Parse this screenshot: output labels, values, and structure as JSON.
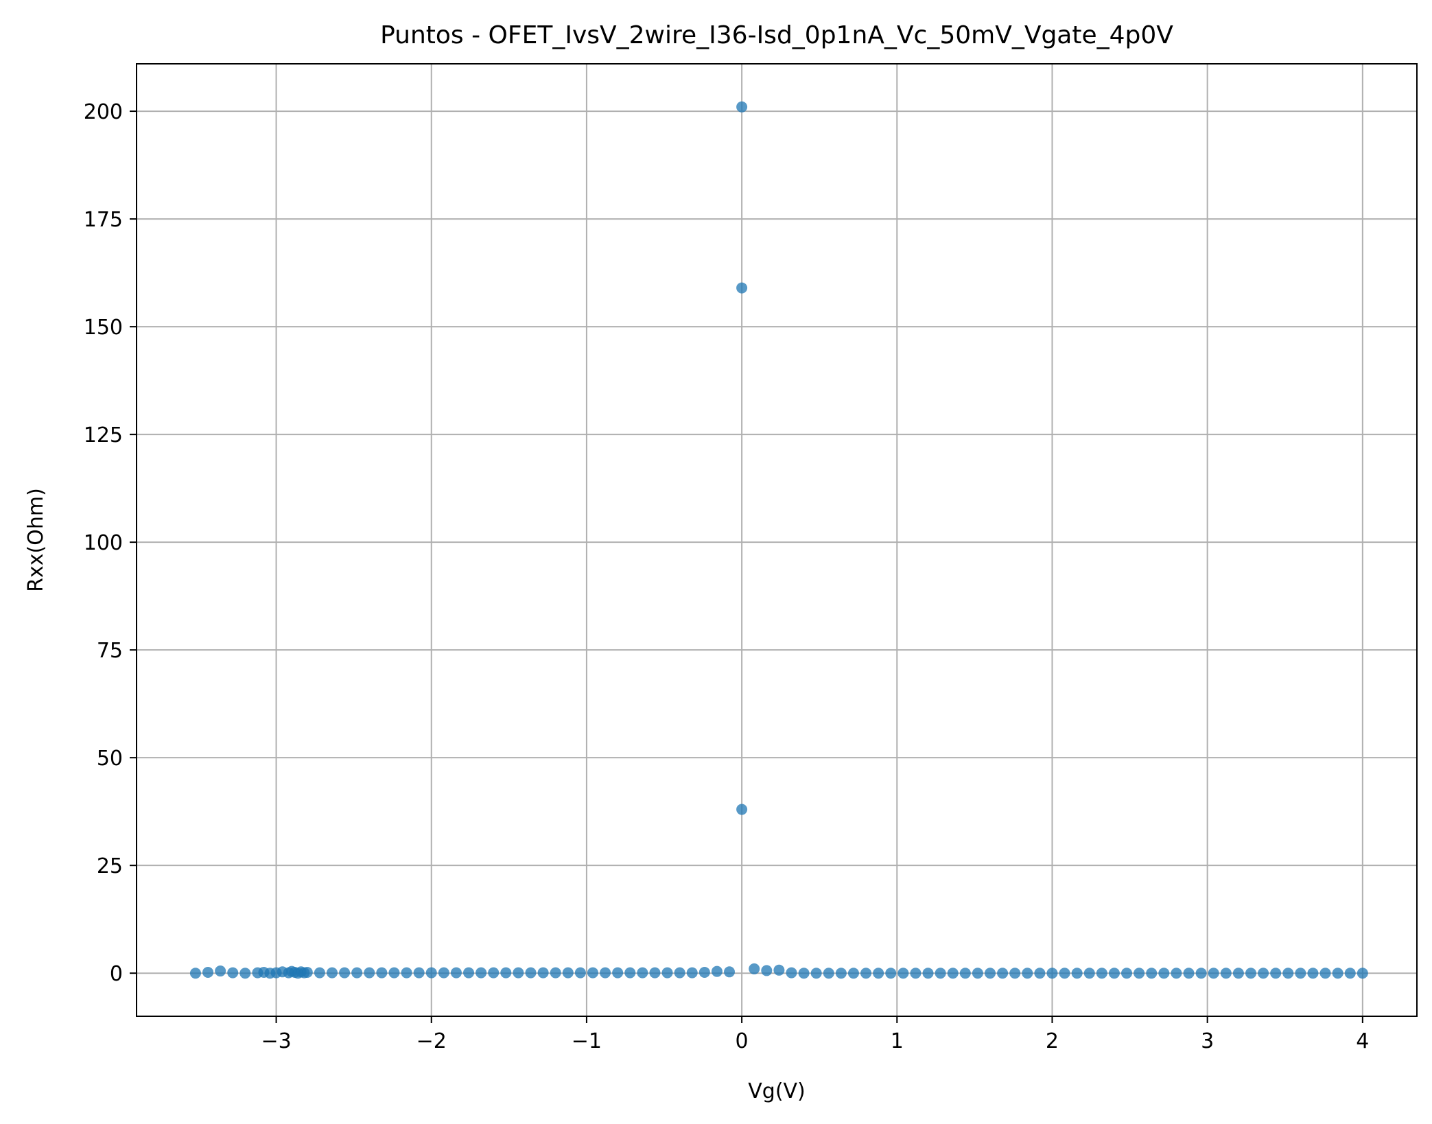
{
  "chart_data": {
    "type": "scatter",
    "title": "Puntos - OFET_IvsV_2wire_I36-Isd_0p1nA_Vc_50mV_Vgate_4p0V",
    "xlabel": "Vg(V)",
    "ylabel": "Rxx(Ohm)",
    "xlim": [
      -3.9,
      4.35
    ],
    "ylim": [
      -10,
      211
    ],
    "xticks": [
      -3,
      -2,
      -1,
      0,
      1,
      2,
      3,
      4
    ],
    "xtick_labels": [
      "−3",
      "−2",
      "−1",
      "0",
      "1",
      "2",
      "3",
      "4"
    ],
    "yticks": [
      0,
      25,
      50,
      75,
      100,
      125,
      150,
      175,
      200
    ],
    "ytick_labels": [
      "0",
      "25",
      "50",
      "75",
      "100",
      "125",
      "150",
      "175",
      "200"
    ],
    "grid": true,
    "point_color": "#1f77b4",
    "series": [
      {
        "x": [
          -3.52,
          -3.44,
          -3.36,
          -3.28,
          -3.2,
          -3.12,
          -3.08,
          -3.04,
          -3.0,
          -2.96,
          -2.92,
          -2.9,
          -2.88,
          -2.86,
          -2.84,
          -2.82,
          -2.8,
          -2.72,
          -2.64,
          -2.56,
          -2.48,
          -2.4,
          -2.32,
          -2.24,
          -2.16,
          -2.08,
          -2.0,
          -1.92,
          -1.84,
          -1.76,
          -1.68,
          -1.6,
          -1.52,
          -1.44,
          -1.36,
          -1.28,
          -1.2,
          -1.12,
          -1.04,
          -0.96,
          -0.88,
          -0.8,
          -0.72,
          -0.64,
          -0.56,
          -0.48,
          -0.4,
          -0.32,
          -0.24,
          -0.16,
          -0.08,
          0.0,
          0.0,
          0.0,
          0.08,
          0.16,
          0.24,
          0.32,
          0.4,
          0.48,
          0.56,
          0.64,
          0.72,
          0.8,
          0.88,
          0.96,
          1.04,
          1.12,
          1.2,
          1.28,
          1.36,
          1.44,
          1.52,
          1.6,
          1.68,
          1.76,
          1.84,
          1.92,
          2.0,
          2.08,
          2.16,
          2.24,
          2.32,
          2.4,
          2.48,
          2.56,
          2.64,
          2.72,
          2.8,
          2.88,
          2.96,
          3.04,
          3.12,
          3.2,
          3.28,
          3.36,
          3.44,
          3.52,
          3.6,
          3.68,
          3.76,
          3.84,
          3.92,
          4.0
        ],
        "y": [
          0.0,
          0.2,
          0.5,
          0.1,
          0.0,
          0.1,
          0.2,
          0.0,
          0.1,
          0.3,
          0.1,
          0.4,
          0.2,
          0.0,
          0.3,
          0.1,
          0.2,
          0.1,
          0.1,
          0.1,
          0.1,
          0.1,
          0.1,
          0.1,
          0.1,
          0.1,
          0.1,
          0.1,
          0.1,
          0.1,
          0.1,
          0.1,
          0.1,
          0.1,
          0.1,
          0.1,
          0.1,
          0.1,
          0.1,
          0.1,
          0.1,
          0.1,
          0.1,
          0.1,
          0.1,
          0.1,
          0.1,
          0.1,
          0.2,
          0.4,
          0.3,
          201.0,
          159.0,
          38.0,
          1.0,
          0.6,
          0.7,
          0.1,
          0.0,
          0.0,
          0.0,
          0.0,
          0.0,
          0.0,
          0.0,
          0.0,
          0.0,
          0.0,
          0.0,
          0.0,
          0.0,
          0.0,
          0.0,
          0.0,
          0.0,
          0.0,
          0.0,
          0.0,
          0.0,
          0.0,
          0.0,
          0.0,
          0.0,
          0.0,
          0.0,
          0.0,
          0.0,
          0.0,
          0.0,
          0.0,
          0.0,
          0.0,
          0.0,
          0.0,
          0.0,
          0.0,
          0.0,
          0.0,
          0.0,
          0.0,
          0.0,
          0.0,
          0.0,
          0.0
        ]
      }
    ]
  }
}
